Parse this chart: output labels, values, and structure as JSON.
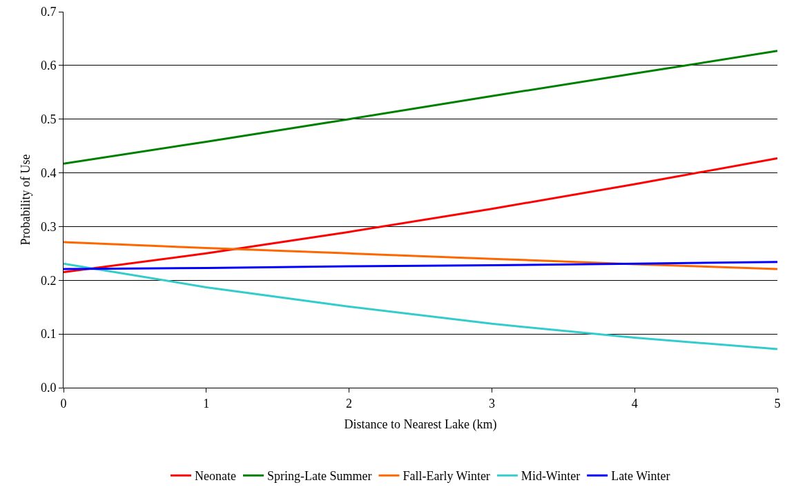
{
  "chart_data": {
    "type": "line",
    "xlabel": "Distance to Nearest Lake (km)",
    "ylabel": "Probability of Use",
    "x": [
      0,
      1,
      2,
      3,
      4,
      5
    ],
    "series": [
      {
        "name": "Neonate",
        "color": "#ff0000",
        "values": [
          0.215,
          0.25,
          0.29,
          0.333,
          0.379,
          0.427
        ]
      },
      {
        "name": "Spring-Late Summer",
        "color": "#008000",
        "values": [
          0.417,
          0.458,
          0.5,
          0.543,
          0.585,
          0.627
        ]
      },
      {
        "name": "Fall-Early Winter",
        "color": "#ff6600",
        "values": [
          0.271,
          0.26,
          0.25,
          0.24,
          0.23,
          0.221
        ]
      },
      {
        "name": "Mid-Winter",
        "color": "#33cccc",
        "values": [
          0.231,
          0.187,
          0.151,
          0.119,
          0.093,
          0.072
        ]
      },
      {
        "name": "Late Winter",
        "color": "#0000ff",
        "values": [
          0.221,
          0.223,
          0.226,
          0.228,
          0.231,
          0.234
        ]
      }
    ],
    "xlim": [
      0,
      5
    ],
    "xticks": [
      0,
      1,
      2,
      3,
      4,
      5
    ],
    "ylim": [
      0,
      0.7
    ],
    "yticks": [
      {
        "value": 0,
        "label": "0.0"
      },
      0.1,
      0.2,
      0.3,
      0.4,
      0.5,
      0.6,
      0.7
    ],
    "grid": "y",
    "legend": "bottom",
    "marker": "none",
    "line_style": "solid"
  }
}
